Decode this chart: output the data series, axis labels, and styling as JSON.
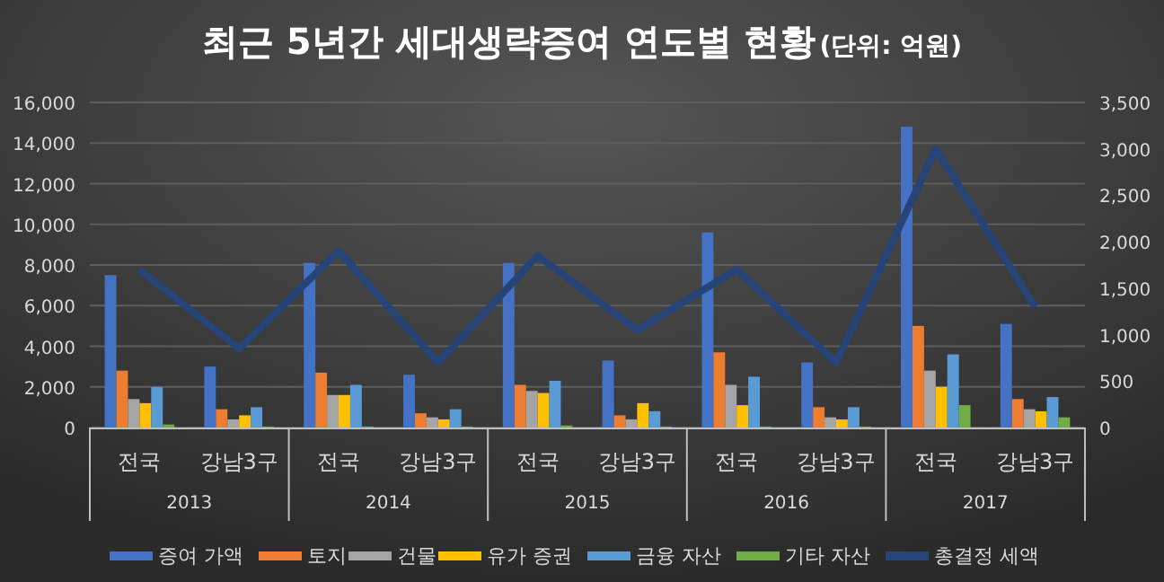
{
  "chart_data": {
    "type": "bar",
    "title": "최근 5년간 세대생략증여 연도별 현황",
    "subtitle": "(단위: 억원)",
    "categories": [
      "전국",
      "강남3구",
      "전국",
      "강남3구",
      "전국",
      "강남3구",
      "전국",
      "강남3구",
      "전국",
      "강남3구"
    ],
    "annotations": [
      "2013",
      "2014",
      "2015",
      "2016",
      "2017"
    ],
    "series": [
      {
        "name": "증여 가액",
        "color": "#4472c4",
        "values": [
          7500,
          3000,
          8100,
          2600,
          8100,
          3300,
          9600,
          3200,
          14800,
          5100
        ]
      },
      {
        "name": "토지",
        "color": "#ed7d31",
        "values": [
          2800,
          900,
          2700,
          700,
          2100,
          600,
          3700,
          1000,
          5000,
          1400
        ]
      },
      {
        "name": "건물",
        "color": "#a5a5a5",
        "values": [
          1400,
          400,
          1600,
          500,
          1800,
          400,
          2100,
          500,
          2800,
          900
        ]
      },
      {
        "name": "유가 증권",
        "color": "#ffc000",
        "values": [
          1200,
          600,
          1600,
          400,
          1700,
          1200,
          1100,
          400,
          2000,
          800
        ]
      },
      {
        "name": "금융 자산",
        "color": "#5b9bd5",
        "values": [
          2000,
          1000,
          2100,
          900,
          2300,
          800,
          2500,
          1000,
          3600,
          1500
        ]
      },
      {
        "name": "기타 자산",
        "color": "#70ad47",
        "values": [
          150,
          50,
          50,
          50,
          100,
          50,
          50,
          50,
          1100,
          500
        ]
      },
      {
        "name": "총결정 세액",
        "type": "line",
        "axis": "y2",
        "color": "#264478",
        "values": [
          1700,
          850,
          1900,
          700,
          1850,
          1050,
          1700,
          700,
          3000,
          1300
        ]
      }
    ],
    "ylim": [
      0,
      16000
    ],
    "yticks": [
      0,
      {
        "value": 2000,
        "label": "2,000"
      },
      {
        "value": 4000,
        "label": "4,000"
      },
      {
        "value": 6000,
        "label": "6,000"
      },
      {
        "value": 8000,
        "label": "8,000"
      },
      {
        "value": 10000,
        "label": "10,000"
      },
      {
        "value": 12000,
        "label": "12,000"
      },
      {
        "value": 14000,
        "label": "14,000"
      },
      {
        "value": 16000,
        "label": "16,000"
      }
    ],
    "y2lim": [
      0,
      3500
    ],
    "y2ticks": [
      0,
      500,
      {
        "value": 1000,
        "label": "1,000"
      },
      {
        "value": 1500,
        "label": "1,500"
      },
      {
        "value": 2000,
        "label": "2,000"
      },
      {
        "value": 2500,
        "label": "2,500"
      },
      {
        "value": 3000,
        "label": "3,000"
      },
      {
        "value": 3500,
        "label": "3,500"
      }
    ],
    "grid": "y",
    "legend": "bottom"
  }
}
